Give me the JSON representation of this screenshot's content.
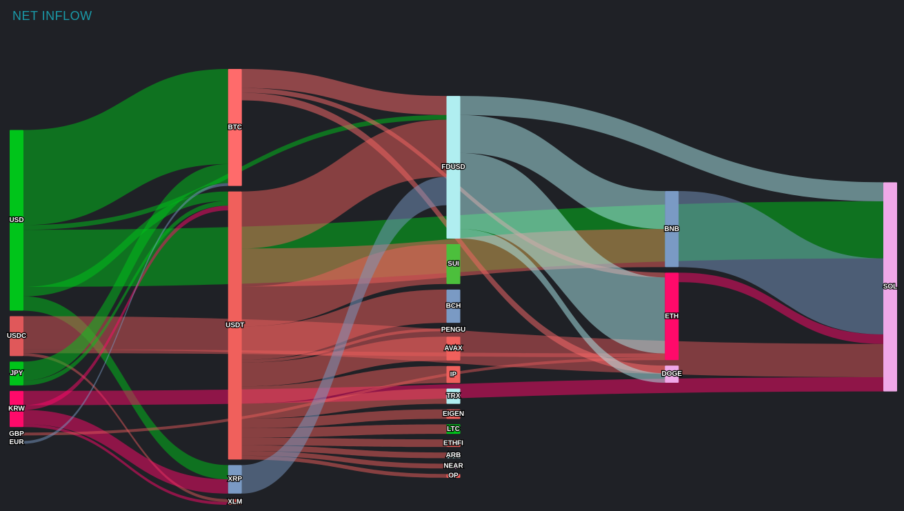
{
  "chart_data": {
    "type": "sankey",
    "title": "NET INFLOW",
    "nodes": [
      {
        "name": "USD",
        "color": "#00c41a"
      },
      {
        "name": "USDC",
        "color": "#e0585a"
      },
      {
        "name": "JPY",
        "color": "#00c41a"
      },
      {
        "name": "KRW",
        "color": "#ff0a6a"
      },
      {
        "name": "GBP",
        "color": "#e05858"
      },
      {
        "name": "EUR",
        "color": "#7a9ac4"
      },
      {
        "name": "BTC",
        "color": "#ff6b6b"
      },
      {
        "name": "USDT",
        "color": "#f0605c"
      },
      {
        "name": "XRP",
        "color": "#7a9ac4"
      },
      {
        "name": "XLM",
        "color": "#f0605c"
      },
      {
        "name": "FDUSD",
        "color": "#b0eef0"
      },
      {
        "name": "SUI",
        "color": "#4cbf3c"
      },
      {
        "name": "BCH",
        "color": "#7a9ac4"
      },
      {
        "name": "PENGU",
        "color": "#e0585a"
      },
      {
        "name": "AVAX",
        "color": "#f0605c"
      },
      {
        "name": "IP",
        "color": "#f0605c"
      },
      {
        "name": "TRX",
        "color": "#b0eef0"
      },
      {
        "name": "EIGEN",
        "color": "#f0605c"
      },
      {
        "name": "LTC",
        "color": "#00c41a"
      },
      {
        "name": "ETHFI",
        "color": "#f0605c"
      },
      {
        "name": "ARB",
        "color": "#b0eef0"
      },
      {
        "name": "NEAR",
        "color": "#f0a8e8"
      },
      {
        "name": "OP",
        "color": "#f0605c"
      },
      {
        "name": "BNB",
        "color": "#7a9ac4"
      },
      {
        "name": "ETH",
        "color": "#ff0a6a"
      },
      {
        "name": "DOGE",
        "color": "#f0a8e8"
      },
      {
        "name": "SOL",
        "color": "#f0a8e8"
      }
    ],
    "links": [
      {
        "source": "USD",
        "target": "BTC",
        "value": 100
      },
      {
        "source": "USD",
        "target": "SOL",
        "value": 60
      },
      {
        "source": "USD",
        "target": "XRP",
        "value": 15
      },
      {
        "source": "USD",
        "target": "USDT",
        "value": 10
      },
      {
        "source": "USD",
        "target": "FDUSD",
        "value": 5
      },
      {
        "source": "USDC",
        "target": "SOL",
        "value": 35
      },
      {
        "source": "USDC",
        "target": "XLM",
        "value": 3
      },
      {
        "source": "USDC",
        "target": "ETH",
        "value": 4
      },
      {
        "source": "JPY",
        "target": "BTC",
        "value": 20
      },
      {
        "source": "JPY",
        "target": "USDT",
        "value": 5
      },
      {
        "source": "KRW",
        "target": "SOL",
        "value": 15
      },
      {
        "source": "KRW",
        "target": "XRP",
        "value": 15
      },
      {
        "source": "KRW",
        "target": "XLM",
        "value": 3
      },
      {
        "source": "KRW",
        "target": "USDT",
        "value": 5
      },
      {
        "source": "GBP",
        "target": "ETH",
        "value": 3
      },
      {
        "source": "EUR",
        "target": "BTC",
        "value": 3
      },
      {
        "source": "BTC",
        "target": "FDUSD",
        "value": 20
      },
      {
        "source": "BTC",
        "target": "DOGE",
        "value": 8
      },
      {
        "source": "BTC",
        "target": "ETH",
        "value": 5
      },
      {
        "source": "USDT",
        "target": "BNB",
        "value": 40
      },
      {
        "source": "USDT",
        "target": "FDUSD",
        "value": 60
      },
      {
        "source": "USDT",
        "target": "SUI",
        "value": 42
      },
      {
        "source": "USDT",
        "target": "BCH",
        "value": 35
      },
      {
        "source": "USDT",
        "target": "PENGU",
        "value": 3
      },
      {
        "source": "USDT",
        "target": "AVAX",
        "value": 25
      },
      {
        "source": "USDT",
        "target": "IP",
        "value": 18
      },
      {
        "source": "USDT",
        "target": "TRX",
        "value": 16
      },
      {
        "source": "USDT",
        "target": "EIGEN",
        "value": 10
      },
      {
        "source": "USDT",
        "target": "LTC",
        "value": 10
      },
      {
        "source": "USDT",
        "target": "ETHFI",
        "value": 8
      },
      {
        "source": "USDT",
        "target": "ARB",
        "value": 6
      },
      {
        "source": "USDT",
        "target": "NEAR",
        "value": 5
      },
      {
        "source": "USDT",
        "target": "OP",
        "value": 4
      },
      {
        "source": "XRP",
        "target": "FDUSD",
        "value": 30
      },
      {
        "source": "FDUSD",
        "target": "ETH",
        "value": 80
      },
      {
        "source": "FDUSD",
        "target": "BNB",
        "value": 40
      },
      {
        "source": "FDUSD",
        "target": "DOGE",
        "value": 10
      },
      {
        "source": "FDUSD",
        "target": "SOL",
        "value": 20
      },
      {
        "source": "BNB",
        "target": "SOL",
        "value": 80
      },
      {
        "source": "ETH",
        "target": "SOL",
        "value": 10
      }
    ]
  }
}
